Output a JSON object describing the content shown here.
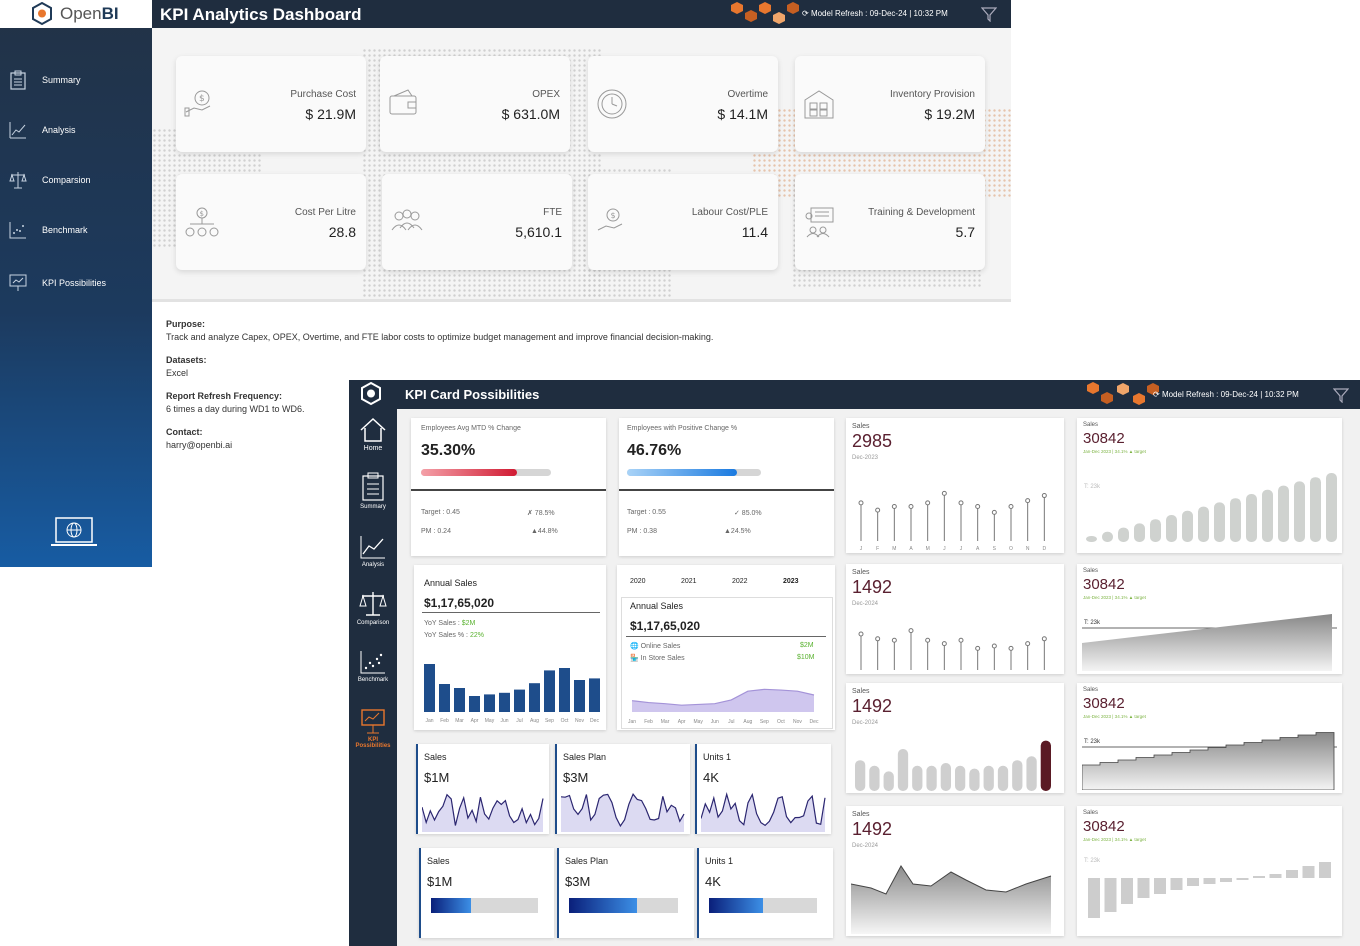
{
  "back_window": {
    "logo_text_light": "Open",
    "logo_text_bold": "BI",
    "title": "KPI Analytics Dashboard",
    "refresh": "Model Refresh : 09-Dec-24 | 10:32 PM",
    "nav": [
      {
        "label": "Summary",
        "icon": "clipboard-icon"
      },
      {
        "label": "Analysis",
        "icon": "line-chart-icon"
      },
      {
        "label": "Comparsion",
        "icon": "scale-icon"
      },
      {
        "label": "Benchmark",
        "icon": "scatter-icon"
      },
      {
        "label": "KPI Possibilities",
        "icon": "presentation-icon"
      }
    ],
    "kpis": [
      {
        "label": "Purchase Cost",
        "value": "$ 21.9M",
        "icon": "hand-dollar-icon"
      },
      {
        "label": "OPEX",
        "value": "$ 631.0M",
        "icon": "wallet-icon"
      },
      {
        "label": "Overtime",
        "value": "$ 14.1M",
        "icon": "clock-icon"
      },
      {
        "label": "Inventory Provision",
        "value": "$ 19.2M",
        "icon": "warehouse-icon"
      },
      {
        "label": "Cost Per Litre",
        "value": "28.8",
        "icon": "cost-tree-icon"
      },
      {
        "label": "FTE",
        "value": "5,610.1",
        "icon": "people-icon"
      },
      {
        "label": "Labour Cost/PLE",
        "value": "11.4",
        "icon": "hand-dollar-icon"
      },
      {
        "label": "Training & Development",
        "value": "5.7",
        "icon": "training-icon"
      }
    ],
    "info": {
      "purpose_h": "Purpose:",
      "purpose": "Track and analyze Capex, OPEX, Overtime, and FTE labor costs to optimize budget management and improve financial decision-making.",
      "datasets_h": "Datasets:",
      "datasets": "Excel",
      "freq_h": "Report Refresh Frequency:",
      "freq": "6 times a day during WD1 to WD6.",
      "contact_h": "Contact:",
      "contact": "harry@openbi.ai"
    }
  },
  "front_window": {
    "title": "KPI Card Possibilities",
    "refresh": "Model Refresh : 09-Dec-24 | 10:32 PM",
    "nav": [
      {
        "label": "Home",
        "icon": "home-icon"
      },
      {
        "label": "Summary",
        "icon": "clipboard-icon"
      },
      {
        "label": "Analysis",
        "icon": "line-chart-icon"
      },
      {
        "label": "Comparison",
        "icon": "scale-icon"
      },
      {
        "label": "Benchmark",
        "icon": "scatter-icon"
      },
      {
        "label": "KPI Possibilities",
        "icon": "presentation-icon"
      }
    ],
    "emp_avg": {
      "label": "Employees Avg MTD % Change",
      "value": "35.30%",
      "progress": 0.74,
      "target": "Target : 0.45",
      "target_pct": "✗ 78.5%",
      "pm": "PM : 0.24",
      "pm_pct": "▲44.8%"
    },
    "emp_pos": {
      "label": "Employees with Positive Change %",
      "value": "46.76%",
      "progress": 0.82,
      "target": "Target : 0.55",
      "target_pct": "✓ 85.0%",
      "pm": "PM : 0.38",
      "pm_pct": "▲24.5%"
    },
    "annual_sales": {
      "label": "Annual Sales",
      "value": "$1,17,65,020",
      "yoy_label": "YoY Sales :",
      "yoy": "$2M",
      "yoy_pct_label": "YoY Sales % :",
      "yoy_pct": "22%"
    },
    "annual_sales_2": {
      "years": [
        "2020",
        "2021",
        "2022",
        "2023"
      ],
      "label": "Annual Sales",
      "value": "$1,17,65,020",
      "online_label": "Online Sales",
      "online": "$2M",
      "store_label": "In Store Sales",
      "store": "$10M"
    },
    "spark_cards": [
      {
        "label": "Sales",
        "value": "$1M"
      },
      {
        "label": "Sales Plan",
        "value": "$3M"
      },
      {
        "label": "Units 1",
        "value": "4K"
      }
    ],
    "bar_cards": [
      {
        "label": "Sales",
        "value": "$1M",
        "progress": 0.37
      },
      {
        "label": "Sales Plan",
        "value": "$3M",
        "progress": 0.62
      },
      {
        "label": "Units 1",
        "value": "4K",
        "progress": 0.5
      }
    ],
    "mid_cards": [
      {
        "label": "Sales",
        "value": "2985",
        "date": "Dec-2023"
      },
      {
        "label": "Sales",
        "value": "1492",
        "date": "Dec-2024"
      },
      {
        "label": "Sales",
        "value": "1492",
        "date": "Dec-2024"
      },
      {
        "label": "Sales",
        "value": "1492",
        "date": "Dec-2024"
      }
    ],
    "right_cards": [
      {
        "label": "Sales",
        "value": "30842",
        "sub": "Jan-Dec 2023 | 34.1% ▲ target",
        "target": "T: 23k"
      },
      {
        "label": "Sales",
        "value": "30842",
        "sub": "Jan-Dec 2023 | 34.1% ▲ target",
        "target": "T: 23k"
      },
      {
        "label": "Sales",
        "value": "30842",
        "sub": "Jan-Dec 2023 | 34.1% ▲ target",
        "target": "T: 23k"
      },
      {
        "label": "Sales",
        "value": "30842",
        "sub": "Jan-Dec 2023 | 34.1% ▲ target",
        "target": "T: 23k"
      }
    ],
    "lollipop_months": [
      "J",
      "F",
      "M",
      "A",
      "M",
      "J",
      "J",
      "A",
      "S",
      "O",
      "N",
      "D"
    ],
    "months": [
      "Jan",
      "Feb",
      "Mar",
      "Apr",
      "May",
      "Jun",
      "Jul",
      "Aug",
      "Sep",
      "Oct",
      "Nov",
      "Dec"
    ],
    "monthly_bars": [
      60,
      35,
      30,
      20,
      22,
      24,
      28,
      36,
      52,
      55,
      40,
      42
    ],
    "area_monthly": [
      0.3,
      0.25,
      0.22,
      0.18,
      0.2,
      0.22,
      0.32,
      0.55,
      0.6,
      0.58,
      0.55,
      0.45
    ],
    "lollipop_1": [
      0.55,
      0.45,
      0.5,
      0.5,
      0.55,
      0.68,
      0.55,
      0.5,
      0.42,
      0.5,
      0.58,
      0.65
    ],
    "lollipop_2": [
      0.75,
      0.65,
      0.62,
      0.82,
      0.62,
      0.55,
      0.62,
      0.45,
      0.5,
      0.45,
      0.55,
      0.65
    ],
    "bars_mid": [
      0.55,
      0.45,
      0.35,
      0.75,
      0.45,
      0.45,
      0.5,
      0.45,
      0.4,
      0.45,
      0.45,
      0.55,
      0.62,
      0.9
    ],
    "colors": {
      "navy": "#1e4d8b",
      "dark_header": "#1f2d3f",
      "accent_orange": "#e8772e",
      "green": "#5ab230",
      "maroon": "#5a2030"
    }
  }
}
